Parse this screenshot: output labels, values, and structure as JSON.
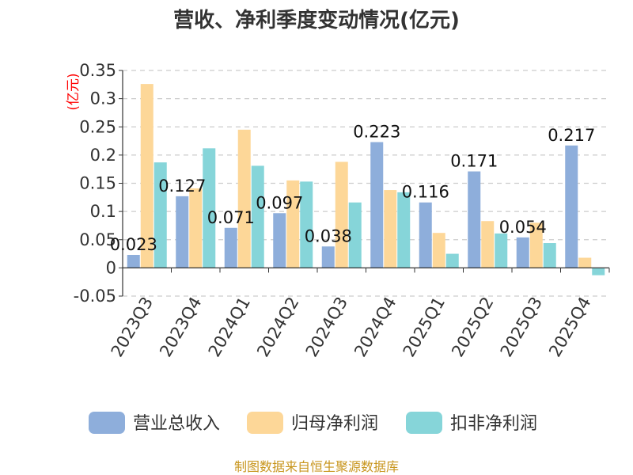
{
  "title": "营收、净利季度变动情况(亿元)",
  "unit_label": "(亿元)",
  "source": "制图数据来自恒生聚源数据库",
  "colors": {
    "营业总收入": "#8eaedb",
    "归母净利润": "#fdd798",
    "扣非净利润": "#86d5d9",
    "axis": "#333333",
    "grid": "#cccccc"
  },
  "chart_data": {
    "type": "bar",
    "categories": [
      "2023Q3",
      "2023Q4",
      "2024Q1",
      "2024Q2",
      "2024Q3",
      "2024Q4",
      "2025Q1",
      "2025Q2",
      "2025Q3",
      "2025Q4"
    ],
    "series": [
      {
        "name": "营业总收入",
        "values": [
          0.023,
          0.127,
          0.071,
          0.097,
          0.038,
          0.223,
          0.116,
          0.171,
          0.054,
          0.217
        ]
      },
      {
        "name": "归母净利润",
        "values": [
          0.326,
          0.141,
          0.245,
          0.155,
          0.188,
          0.138,
          0.062,
          0.083,
          0.08,
          0.018
        ]
      },
      {
        "name": "扣非净利润",
        "values": [
          0.187,
          0.212,
          0.181,
          0.153,
          0.116,
          0.134,
          0.025,
          0.061,
          0.044,
          -0.013
        ]
      }
    ],
    "data_labels": [
      "0.023",
      "0.127",
      "0.071",
      "0.097",
      "0.038",
      "0.223",
      "0.116",
      "0.171",
      "0.054",
      "0.217"
    ],
    "yticks": [
      "0.35",
      "0.3",
      "0.25",
      "0.2",
      "0.15",
      "0.1",
      "0.05",
      "0",
      "-0.05"
    ],
    "ylim": [
      -0.05,
      0.35
    ],
    "grid": true,
    "legend_position": "bottom"
  }
}
